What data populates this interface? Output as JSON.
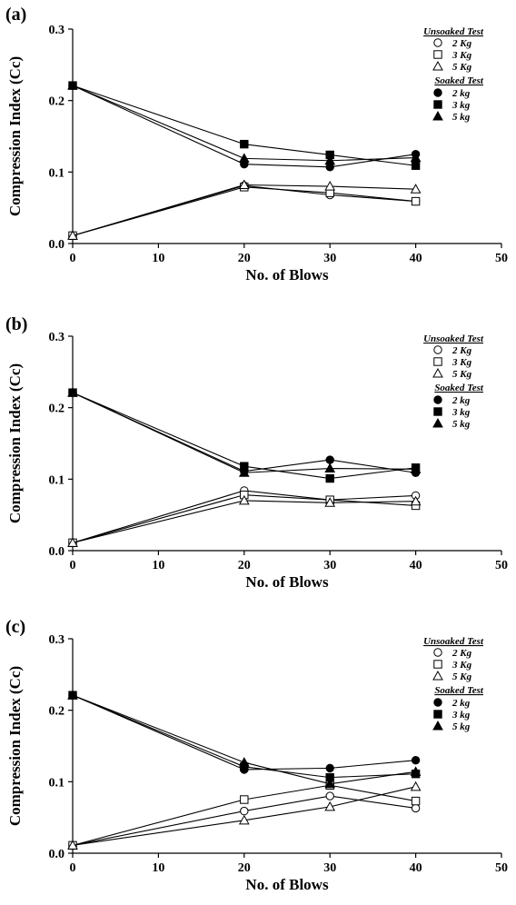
{
  "chart_data": [
    {
      "type": "line",
      "panel_label": "(a)",
      "xlabel": "No. of Blows",
      "ylabel": "Compression Index (Cc)",
      "xlim": [
        0,
        50
      ],
      "ylim": [
        0.0,
        0.3
      ],
      "xticks": [
        "0",
        "10",
        "20",
        "30",
        "40",
        "50"
      ],
      "yticks": [
        "0.0",
        "0.1",
        "0.2",
        "0.3"
      ],
      "legend_position": "top-right",
      "legend_groups": [
        "Unsoaked Test",
        "Soaked Test"
      ],
      "x": [
        0,
        20,
        30,
        40
      ],
      "series": [
        {
          "name": "2 Kg",
          "group": "Unsoaked Test",
          "marker": "circle-open",
          "values": [
            0.011,
            0.081,
            0.068,
            0.059
          ]
        },
        {
          "name": "3 Kg",
          "group": "Unsoaked Test",
          "marker": "square-open",
          "values": [
            0.011,
            0.079,
            0.071,
            0.059
          ]
        },
        {
          "name": "5 Kg",
          "group": "Unsoaked Test",
          "marker": "triangle-open",
          "values": [
            0.011,
            0.082,
            0.08,
            0.076
          ]
        },
        {
          "name": "2 kg",
          "group": "Soaked Test",
          "marker": "circle-filled",
          "values": [
            0.221,
            0.111,
            0.107,
            0.125
          ]
        },
        {
          "name": "3 kg",
          "group": "Soaked Test",
          "marker": "square-filled",
          "values": [
            0.221,
            0.139,
            0.124,
            0.109
          ]
        },
        {
          "name": "5 kg",
          "group": "Soaked Test",
          "marker": "triangle-filled",
          "values": [
            0.221,
            0.119,
            0.116,
            0.12
          ]
        }
      ]
    },
    {
      "type": "line",
      "panel_label": "(b)",
      "xlabel": "No. of Blows",
      "ylabel": "Compression Index (Cc)",
      "xlim": [
        0,
        50
      ],
      "ylim": [
        0.0,
        0.3
      ],
      "xticks": [
        "0",
        "10",
        "20",
        "30",
        "40",
        "50"
      ],
      "yticks": [
        "0.0",
        "0.1",
        "0.2",
        "0.3"
      ],
      "legend_position": "top-right",
      "legend_groups": [
        "Unsoaked Test",
        "Soaked Test"
      ],
      "x": [
        0,
        20,
        30,
        40
      ],
      "series": [
        {
          "name": "2 Kg",
          "group": "Unsoaked Test",
          "marker": "circle-open",
          "values": [
            0.011,
            0.084,
            0.071,
            0.077
          ]
        },
        {
          "name": "3 Kg",
          "group": "Unsoaked Test",
          "marker": "square-open",
          "values": [
            0.011,
            0.078,
            0.071,
            0.063
          ]
        },
        {
          "name": "5 Kg",
          "group": "Unsoaked Test",
          "marker": "triangle-open",
          "values": [
            0.011,
            0.07,
            0.067,
            0.069
          ]
        },
        {
          "name": "2 kg",
          "group": "Soaked Test",
          "marker": "circle-filled",
          "values": [
            0.221,
            0.111,
            0.127,
            0.109
          ]
        },
        {
          "name": "3 kg",
          "group": "Soaked Test",
          "marker": "square-filled",
          "values": [
            0.221,
            0.118,
            0.101,
            0.116
          ]
        },
        {
          "name": "5 kg",
          "group": "Soaked Test",
          "marker": "triangle-filled",
          "values": [
            0.221,
            0.109,
            0.115,
            0.114
          ]
        }
      ]
    },
    {
      "type": "line",
      "panel_label": "(c)",
      "xlabel": "No. of Blows",
      "ylabel": "Compression Index (Cc)",
      "xlim": [
        0,
        50
      ],
      "ylim": [
        0.0,
        0.3
      ],
      "xticks": [
        "0",
        "10",
        "20",
        "30",
        "40",
        "50"
      ],
      "yticks": [
        "0.0",
        "0.1",
        "0.2",
        "0.3"
      ],
      "legend_position": "top-right",
      "legend_groups": [
        "Unsoaked Test",
        "Soaked Test"
      ],
      "x": [
        0,
        20,
        30,
        40
      ],
      "series": [
        {
          "name": "2 Kg",
          "group": "Unsoaked Test",
          "marker": "circle-open",
          "values": [
            0.011,
            0.059,
            0.08,
            0.063
          ]
        },
        {
          "name": "3 Kg",
          "group": "Unsoaked Test",
          "marker": "square-open",
          "values": [
            0.011,
            0.075,
            0.095,
            0.073
          ]
        },
        {
          "name": "5 Kg",
          "group": "Unsoaked Test",
          "marker": "triangle-open",
          "values": [
            0.011,
            0.046,
            0.065,
            0.093
          ]
        },
        {
          "name": "2 kg",
          "group": "Soaked Test",
          "marker": "circle-filled",
          "values": [
            0.221,
            0.117,
            0.119,
            0.13
          ]
        },
        {
          "name": "3 kg",
          "group": "Soaked Test",
          "marker": "square-filled",
          "values": [
            0.221,
            0.121,
            0.106,
            0.111
          ]
        },
        {
          "name": "5 kg",
          "group": "Soaked Test",
          "marker": "triangle-filled",
          "values": [
            0.221,
            0.127,
            0.097,
            0.114
          ]
        }
      ]
    }
  ]
}
